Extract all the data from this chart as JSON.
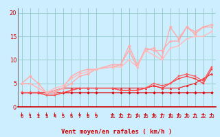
{
  "background_color": "#cceeff",
  "grid_color": "#99cccc",
  "xlabel": "Vent moyen/en rafales ( km/h )",
  "xlim": [
    -0.5,
    23.5
  ],
  "ylim": [
    0,
    21
  ],
  "yticks": [
    0,
    5,
    10,
    15,
    20
  ],
  "xticks": [
    0,
    1,
    2,
    3,
    4,
    5,
    6,
    7,
    8,
    9,
    11,
    12,
    13,
    14,
    15,
    16,
    17,
    18,
    19,
    20,
    21,
    22,
    23
  ],
  "series": [
    {
      "x": [
        0,
        1,
        2,
        3,
        4,
        5,
        6,
        7,
        8,
        9,
        11,
        12,
        13,
        14,
        15,
        16,
        17,
        18,
        19,
        20,
        21,
        22,
        23
      ],
      "y": [
        3,
        3,
        3,
        3,
        3,
        3,
        3,
        3,
        3,
        3,
        3,
        3,
        3,
        3,
        3,
        3,
        3,
        3,
        3,
        3,
        3,
        3,
        3
      ],
      "color": "#dd0000",
      "lw": 1.0,
      "marker": "D",
      "ms": 2.0
    },
    {
      "x": [
        0,
        1,
        2,
        3,
        4,
        5,
        6,
        7,
        8,
        9,
        11,
        12,
        13,
        14,
        15,
        16,
        17,
        18,
        19,
        20,
        21,
        22,
        23
      ],
      "y": [
        3,
        3,
        3,
        3,
        3.5,
        4,
        4,
        4,
        4,
        4,
        4,
        4,
        4,
        4,
        4,
        4.5,
        4,
        4,
        4,
        4.5,
        5,
        6,
        7
      ],
      "color": "#ee2222",
      "lw": 0.9,
      "marker": "^",
      "ms": 2.0
    },
    {
      "x": [
        0,
        1,
        2,
        3,
        4,
        5,
        6,
        7,
        8,
        9,
        11,
        12,
        13,
        14,
        15,
        16,
        17,
        18,
        19,
        20,
        21,
        22,
        23
      ],
      "y": [
        3,
        3,
        3,
        2.5,
        2.5,
        3,
        3.5,
        4,
        4,
        4,
        4,
        3.5,
        3.5,
        3.5,
        4,
        4.5,
        4,
        5,
        6,
        6.5,
        6,
        5,
        8
      ],
      "color": "#ff3333",
      "lw": 0.9,
      "marker": "s",
      "ms": 1.8
    },
    {
      "x": [
        0,
        1,
        2,
        3,
        4,
        5,
        6,
        7,
        8,
        9,
        11,
        12,
        13,
        14,
        15,
        16,
        17,
        18,
        19,
        20,
        21,
        22,
        23
      ],
      "y": [
        3,
        3,
        3,
        2.5,
        2.5,
        3,
        3.5,
        4,
        4,
        4,
        4,
        3.5,
        3.5,
        3.5,
        4,
        5,
        4.5,
        5,
        6.5,
        7,
        6.5,
        5.5,
        8.5
      ],
      "color": "#ff5555",
      "lw": 0.9,
      "marker": "s",
      "ms": 1.8
    },
    {
      "x": [
        0,
        1,
        2,
        3,
        4,
        5,
        6,
        7,
        8,
        9,
        11,
        12,
        13,
        14,
        15,
        16,
        17,
        18,
        19,
        20,
        21,
        22,
        23
      ],
      "y": [
        5,
        6.5,
        5,
        3,
        3,
        4,
        5,
        6.5,
        7,
        8,
        8.5,
        9,
        13,
        9,
        12,
        12.5,
        10.5,
        17,
        14.5,
        17,
        15.5,
        17,
        17.5
      ],
      "color": "#ffaaaa",
      "lw": 1.0,
      "marker": "D",
      "ms": 2.0
    },
    {
      "x": [
        0,
        1,
        2,
        3,
        4,
        5,
        6,
        7,
        8,
        9,
        11,
        12,
        13,
        14,
        15,
        16,
        17,
        18,
        19,
        20,
        21,
        22,
        23
      ],
      "y": [
        5,
        5,
        4,
        3,
        3.5,
        4,
        6.5,
        7.5,
        8,
        8,
        9,
        9,
        12,
        8.5,
        12.5,
        12,
        12,
        14,
        14,
        17,
        16,
        17,
        17
      ],
      "color": "#ffaaaa",
      "lw": 1.0,
      "marker": "^",
      "ms": 2.0
    },
    {
      "x": [
        0,
        1,
        2,
        3,
        4,
        5,
        6,
        7,
        8,
        9,
        11,
        12,
        13,
        14,
        15,
        16,
        17,
        18,
        19,
        20,
        21,
        22,
        23
      ],
      "y": [
        5,
        5,
        4,
        3,
        4,
        4.5,
        6,
        7,
        7.5,
        8,
        8.5,
        8.5,
        10,
        8.5,
        12,
        11,
        10,
        12.5,
        13,
        14.5,
        15,
        15,
        16
      ],
      "color": "#ffbbbb",
      "lw": 1.0,
      "marker": "v",
      "ms": 2.0
    }
  ],
  "arrow_down_x": [
    0,
    1,
    2,
    3,
    4,
    5,
    6,
    7,
    8,
    9
  ],
  "arrow_up_x": [
    11,
    12,
    13,
    14,
    15,
    16,
    17,
    18,
    19,
    20,
    21,
    22,
    23
  ]
}
